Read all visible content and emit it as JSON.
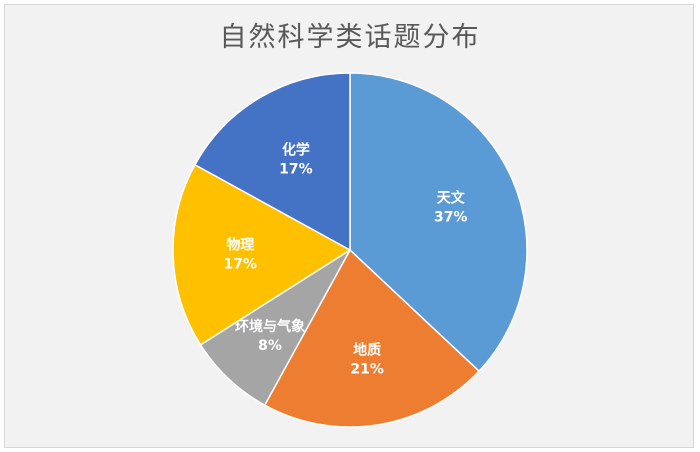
{
  "chart_data": {
    "type": "pie",
    "title": "自然科学类话题分布",
    "slices": [
      {
        "label": "天文",
        "value": 37,
        "value_label": "37%",
        "color": "#5b9bd5"
      },
      {
        "label": "地质",
        "value": 21,
        "value_label": "21%",
        "color": "#ed7d31"
      },
      {
        "label": "环境与气象",
        "value": 8,
        "value_label": "8%",
        "color": "#a5a5a5"
      },
      {
        "label": "物理",
        "value": 17,
        "value_label": "17%",
        "color": "#ffc000"
      },
      {
        "label": "化学",
        "value": 17,
        "value_label": "17%",
        "color": "#4472c4"
      }
    ],
    "start": "12 o'clock",
    "direction": "clockwise",
    "legend": "none"
  }
}
